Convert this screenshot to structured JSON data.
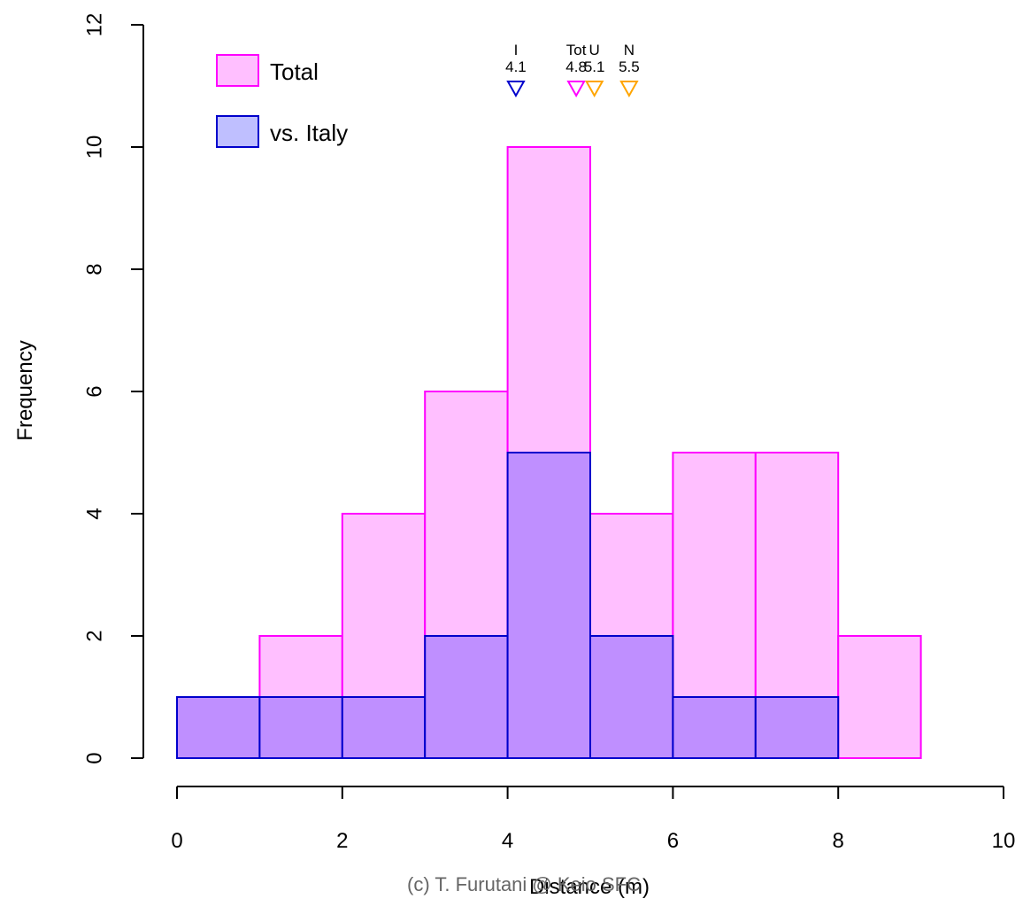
{
  "chart_data": {
    "type": "bar",
    "xlabel": "Distance (m)",
    "ylabel": "Frequency",
    "xlim": [
      0,
      10
    ],
    "ylim": [
      0,
      12
    ],
    "x_ticks": [
      0,
      2,
      4,
      6,
      8,
      10
    ],
    "y_ticks": [
      0,
      2,
      4,
      6,
      8,
      10,
      12
    ],
    "bins": [
      [
        0,
        1
      ],
      [
        1,
        2
      ],
      [
        2,
        3
      ],
      [
        3,
        4
      ],
      [
        4,
        5
      ],
      [
        5,
        6
      ],
      [
        6,
        7
      ],
      [
        7,
        8
      ],
      [
        8,
        9
      ]
    ],
    "series": [
      {
        "name": "Total",
        "fill": "#FFBFFF",
        "stroke": "#FF00FF",
        "values": [
          1,
          2,
          4,
          6,
          10,
          4,
          5,
          5,
          2
        ]
      },
      {
        "name": "vs. Italy",
        "fill": "#BFBFFF",
        "stroke": "#0000CC",
        "values": [
          1,
          1,
          1,
          2,
          5,
          2,
          1,
          1,
          0
        ]
      }
    ],
    "overlap_fill": "#BF8FFF",
    "grid": false,
    "legend_position": "top-left",
    "mean_markers": [
      {
        "name": "I",
        "label": "4.1",
        "value": 4.1,
        "color": "#0000CC"
      },
      {
        "name": "Tot",
        "label": "4.8",
        "value": 4.83,
        "color": "#FF00FF"
      },
      {
        "name": "U",
        "label": "5.1",
        "value": 5.05,
        "color": "#FFA500"
      },
      {
        "name": "N",
        "label": "5.5",
        "value": 5.47,
        "color": "#FFA500"
      }
    ]
  },
  "legend": [
    {
      "label": "Total",
      "fill": "#FFBFFF",
      "stroke": "#FF00FF"
    },
    {
      "label": "vs. Italy",
      "fill": "#BFBFFF",
      "stroke": "#0000CC"
    }
  ],
  "credit": "(c) T. Furutani @ Keio SFC"
}
